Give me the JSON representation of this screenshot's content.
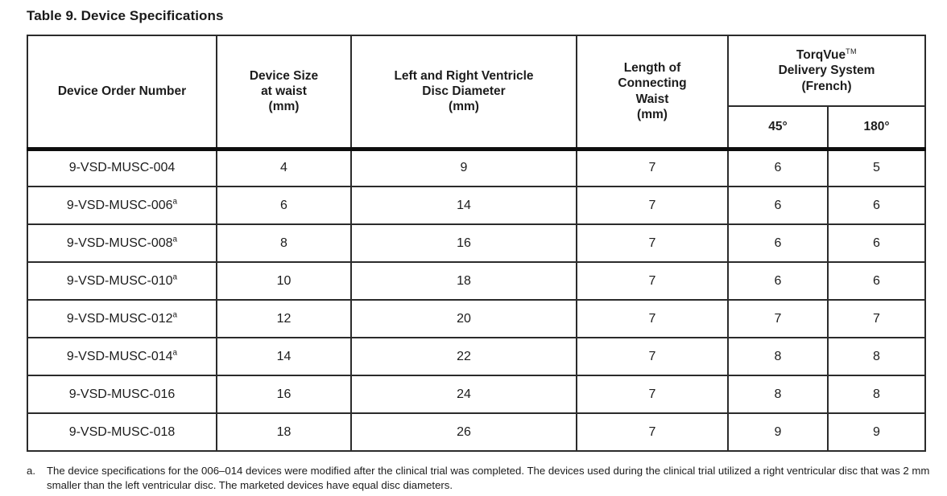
{
  "title": "Table 9. Device Specifications",
  "table": {
    "headers": {
      "order_number": "Device Order Number",
      "size_lines": [
        "Device Size",
        "at waist",
        "(mm)"
      ],
      "disc_lines": [
        "Left and Right Ventricle",
        "Disc Diameter",
        "(mm)"
      ],
      "waist_lines": [
        "Length of",
        "Connecting",
        "Waist",
        "(mm)"
      ],
      "delivery_name": "TorqVue",
      "delivery_tm": "TM",
      "delivery_line2": "Delivery System",
      "delivery_line3": "(French)",
      "sub_45": "45°",
      "sub_180": "180°"
    },
    "rows": [
      {
        "order": "9-VSD-MUSC-004",
        "sup": "",
        "size": "4",
        "disc": "9",
        "waist": "7",
        "f45": "6",
        "f180": "5"
      },
      {
        "order": "9-VSD-MUSC-006",
        "sup": "a",
        "size": "6",
        "disc": "14",
        "waist": "7",
        "f45": "6",
        "f180": "6"
      },
      {
        "order": "9-VSD-MUSC-008",
        "sup": "a",
        "size": "8",
        "disc": "16",
        "waist": "7",
        "f45": "6",
        "f180": "6"
      },
      {
        "order": "9-VSD-MUSC-010",
        "sup": "a",
        "size": "10",
        "disc": "18",
        "waist": "7",
        "f45": "6",
        "f180": "6"
      },
      {
        "order": "9-VSD-MUSC-012",
        "sup": "a",
        "size": "12",
        "disc": "20",
        "waist": "7",
        "f45": "7",
        "f180": "7"
      },
      {
        "order": "9-VSD-MUSC-014",
        "sup": "a",
        "size": "14",
        "disc": "22",
        "waist": "7",
        "f45": "8",
        "f180": "8"
      },
      {
        "order": "9-VSD-MUSC-016",
        "sup": "",
        "size": "16",
        "disc": "24",
        "waist": "7",
        "f45": "8",
        "f180": "8"
      },
      {
        "order": "9-VSD-MUSC-018",
        "sup": "",
        "size": "18",
        "disc": "26",
        "waist": "7",
        "f45": "9",
        "f180": "9"
      }
    ]
  },
  "footnote": {
    "marker": "a.",
    "text": "The device specifications for the 006–014 devices were modified after the clinical trial was completed. The devices used during the clinical trial utilized a right ventricular disc that was 2 mm smaller than the left ventricular disc. The marketed devices have equal disc diameters."
  },
  "colors": {
    "border": "#2b2b2b",
    "thick_rule": "#0d0d0d",
    "text": "#1c1c1c",
    "background": "#ffffff"
  }
}
